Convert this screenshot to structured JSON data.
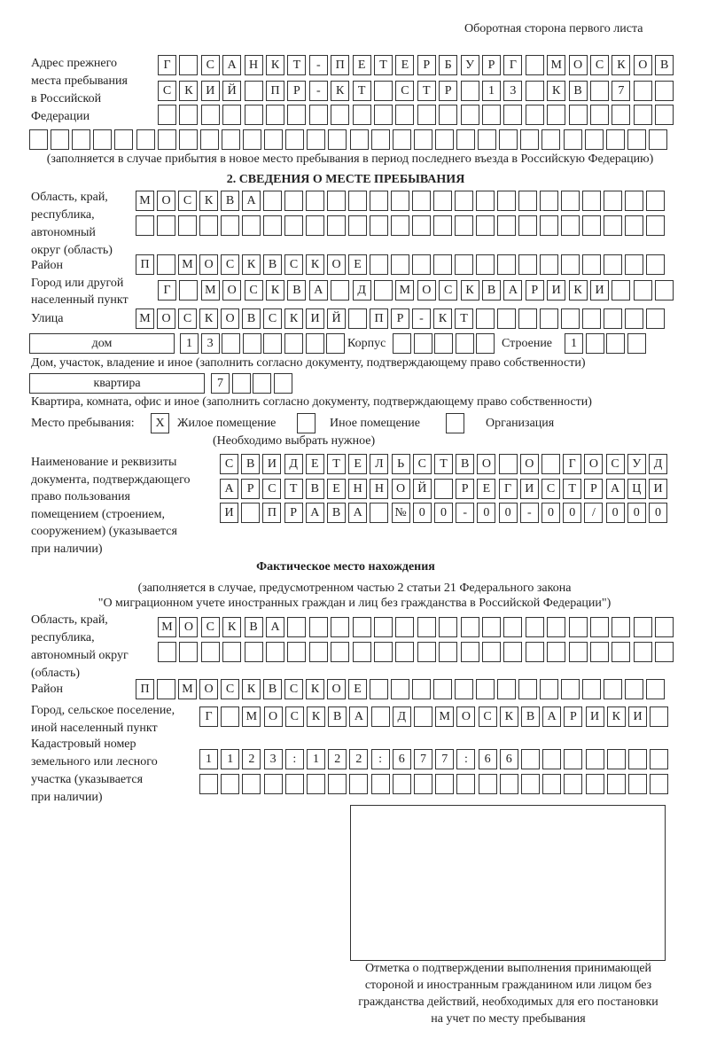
{
  "header": "Оборотная сторона первого листа",
  "prev_address": {
    "label": [
      "Адрес прежнего",
      "места пребывания",
      "в Российской",
      "Федерации"
    ],
    "rows": [
      [
        "Г",
        "",
        "С",
        "А",
        "Н",
        "К",
        "Т",
        "-",
        "П",
        "Е",
        "Т",
        "Е",
        "Р",
        "Б",
        "У",
        "Р",
        "Г",
        "",
        "М",
        "О",
        "С",
        "К",
        "О",
        "В"
      ],
      [
        "С",
        "К",
        "И",
        "Й",
        "",
        "П",
        "Р",
        "-",
        "К",
        "Т",
        "",
        "С",
        "Т",
        "Р",
        "",
        "1",
        "3",
        "",
        "К",
        "В",
        "",
        "7",
        "",
        ""
      ],
      [],
      []
    ],
    "note": "(заполняется в случае прибытия в новое место пребывания в период последнего въезда в Российскую Федерацию)"
  },
  "section2": {
    "title": "2. СВЕДЕНИЯ О МЕСТЕ ПРЕБЫВАНИЯ",
    "region_label": [
      "Область, край,",
      "республика,",
      "автономный",
      "округ (область)"
    ],
    "region_rows": [
      [
        "М",
        "О",
        "С",
        "К",
        "В",
        "А"
      ],
      []
    ],
    "district_label": "Район",
    "district": [
      "П",
      "",
      "М",
      "О",
      "С",
      "К",
      "В",
      "С",
      "К",
      "О",
      "Е"
    ],
    "city_label": [
      "Город или другой",
      "населенный пункт"
    ],
    "city": [
      "Г",
      "",
      "М",
      "О",
      "С",
      "К",
      "В",
      "А",
      "",
      "Д",
      "",
      "М",
      "О",
      "С",
      "К",
      "В",
      "А",
      "Р",
      "И",
      "К",
      "И"
    ],
    "street_label": "Улица",
    "street": [
      "М",
      "О",
      "С",
      "К",
      "О",
      "В",
      "С",
      "К",
      "И",
      "Й",
      "",
      "П",
      "Р",
      "-",
      "К",
      "Т"
    ],
    "house_type": "дом",
    "house": [
      "1",
      "3"
    ],
    "korpus_label": "Корпус",
    "korpus": [],
    "building_label": "Строение",
    "building": [
      "1"
    ],
    "house_note": "Дом, участок, владение и иное (заполнить согласно документу, подтверждающему право собственности)",
    "apt_type": "квартира",
    "apt": [
      "7"
    ],
    "apt_note": "Квартира, комната, офис и иное (заполнить согласно документу, подтверждающему право собственности)",
    "stay_label": "Место пребывания:",
    "options": [
      {
        "label": "Жилое помещение",
        "mark": "X"
      },
      {
        "label": "Иное помещение",
        "mark": ""
      },
      {
        "label": "Организация",
        "mark": ""
      }
    ],
    "options_note": "(Необходимо выбрать нужное)",
    "doc_label": [
      "Наименование и реквизиты",
      "документа, подтверждающего",
      "право пользования",
      "помещением (строением,",
      "сооружением) (указывается",
      "при наличии)"
    ],
    "doc_rows": [
      [
        "С",
        "В",
        "И",
        "Д",
        "Е",
        "Т",
        "Е",
        "Л",
        "Ь",
        "С",
        "Т",
        "В",
        "О",
        "",
        "О",
        "",
        "Г",
        "О",
        "С",
        "У",
        "Д"
      ],
      [
        "А",
        "Р",
        "С",
        "Т",
        "В",
        "Е",
        "Н",
        "Н",
        "О",
        "Й",
        "",
        "Р",
        "Е",
        "Г",
        "И",
        "С",
        "Т",
        "Р",
        "А",
        "Ц",
        "И"
      ],
      [
        "И",
        "",
        "П",
        "Р",
        "А",
        "В",
        "А",
        "",
        "№",
        "0",
        "0",
        "-",
        "0",
        "0",
        "-",
        "0",
        "0",
        "/",
        "0",
        "0",
        "0"
      ]
    ]
  },
  "actual": {
    "title": "Фактическое место нахождения",
    "note": [
      "(заполняется в случае, предусмотренном частью 2 статьи 21 Федерального закона",
      "\"О миграционном учете иностранных граждан и лиц без гражданства в Российской Федерации\")"
    ],
    "region_label": [
      "Область, край,",
      "республика,",
      "автономный округ",
      "(область)"
    ],
    "region_rows": [
      [
        "М",
        "О",
        "С",
        "К",
        "В",
        "А"
      ],
      []
    ],
    "district_label": "Район",
    "district": [
      "П",
      "",
      "М",
      "О",
      "С",
      "К",
      "В",
      "С",
      "К",
      "О",
      "Е"
    ],
    "city_label": [
      "Город, сельское поселение,",
      "иной населенный пункт"
    ],
    "city": [
      "Г",
      "",
      "М",
      "О",
      "С",
      "К",
      "В",
      "А",
      "",
      "Д",
      "",
      "М",
      "О",
      "С",
      "К",
      "В",
      "А",
      "Р",
      "И",
      "К",
      "И"
    ],
    "cadastral_label": [
      "Кадастровый номер",
      "земельного или лесного",
      "участка (указывается",
      "при наличии)"
    ],
    "cadastral_rows": [
      [
        "1",
        "1",
        "2",
        "3",
        ":",
        "1",
        "2",
        "2",
        ":",
        "6",
        "7",
        "7",
        ":",
        "6",
        "6"
      ],
      []
    ]
  },
  "stamp_caption": [
    "Отметка о подтверждении выполнения принимающей",
    "стороной и иностранным гражданином или лицом без",
    "гражданства действий, необходимых для его постановки",
    "на учет по месту пребывания"
  ]
}
